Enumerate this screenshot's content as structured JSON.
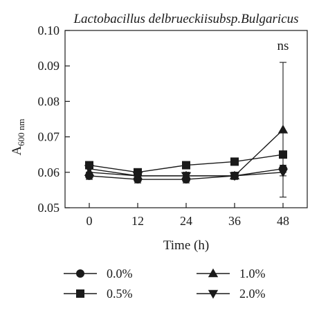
{
  "chart_data": {
    "type": "line",
    "title": "Lactobacillus delbrueckiisubsp.Bulgaricus",
    "xlabel": "Time (h)",
    "ylabel_main": "A",
    "ylabel_sub": "600 nm",
    "x": [
      0,
      12,
      24,
      36,
      48
    ],
    "xlim": [
      -6,
      54
    ],
    "ylim": [
      0.05,
      0.1
    ],
    "x_ticks": [
      "0",
      "12",
      "24",
      "36",
      "48"
    ],
    "y_ticks": [
      "0.05",
      "0.06",
      "0.07",
      "0.08",
      "0.09",
      "0.10"
    ],
    "y_tick_values": [
      0.05,
      0.06,
      0.07,
      0.08,
      0.09,
      0.1
    ],
    "grid": false,
    "legend_position": "bottom",
    "series": [
      {
        "name": "0.0%",
        "marker": "circle",
        "values": [
          0.059,
          0.058,
          0.058,
          0.059,
          0.061
        ],
        "error": [
          0.001,
          0.001,
          0.001,
          0.001,
          0.001
        ]
      },
      {
        "name": "0.5%",
        "marker": "square",
        "values": [
          0.062,
          0.06,
          0.062,
          0.063,
          0.065
        ],
        "error": [
          0,
          0,
          0,
          0,
          0
        ]
      },
      {
        "name": "1.0%",
        "marker": "triangle-up",
        "values": [
          0.06,
          0.059,
          0.059,
          0.059,
          0.072
        ],
        "error": [
          0.001,
          0.001,
          0.001,
          0.001,
          0.019
        ]
      },
      {
        "name": "2.0%",
        "marker": "triangle-down",
        "values": [
          0.061,
          0.059,
          0.059,
          0.059,
          0.06
        ],
        "error": [
          0.001,
          0.001,
          0.001,
          0.001,
          0.001
        ]
      }
    ],
    "annotations": [
      {
        "text": "ns",
        "x": 48,
        "y": 0.0945
      }
    ]
  }
}
